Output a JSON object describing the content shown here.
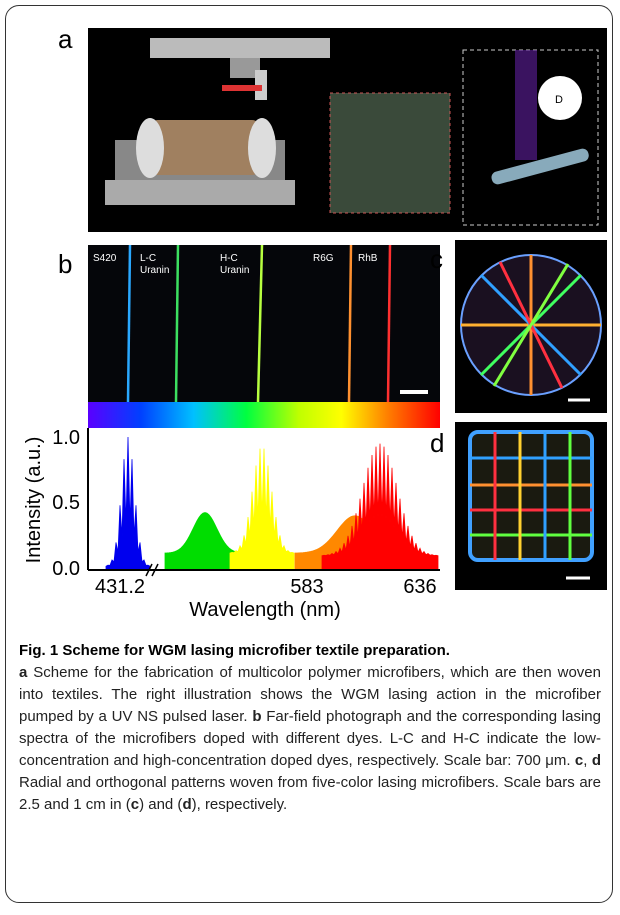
{
  "figure": {
    "panels": {
      "a": "a",
      "b": "b",
      "c": "c",
      "d": "d"
    },
    "dyes": [
      "S420",
      "L-C\nUranin",
      "H-C\nUranin",
      "R6G",
      "RhB"
    ],
    "axis": {
      "y_label": "Intensity (a.u.)",
      "x_label": "Wavelength (nm)",
      "y_ticks": [
        "1.0",
        "0.5",
        "0.0"
      ],
      "x_ticks": [
        "431.2",
        "583",
        "636"
      ]
    }
  },
  "caption": {
    "title": "Fig. 1 Scheme for WGM lasing microfiber textile preparation.",
    "body": [
      "a",
      " Scheme for the fabrication of multicolor polymer microfibers, which are then woven into textiles. The right illustration shows the WGM lasing action in the microfiber pumped by a UV NS pulsed laser. ",
      "b",
      " Far-field photograph and the corresponding lasing spectra of the microfibers doped with different dyes. L-C and H-C indicate the low-concentration and high-concentration doped dyes, respectively. Scale bar: 700 μm. ",
      "c",
      ", ",
      "d",
      " Radial and orthogonal patterns woven from five-color lasing microfibers. Scale bars are 2.5 and 1 cm in (",
      "c",
      ") and (",
      "d",
      "), respectively."
    ]
  }
}
